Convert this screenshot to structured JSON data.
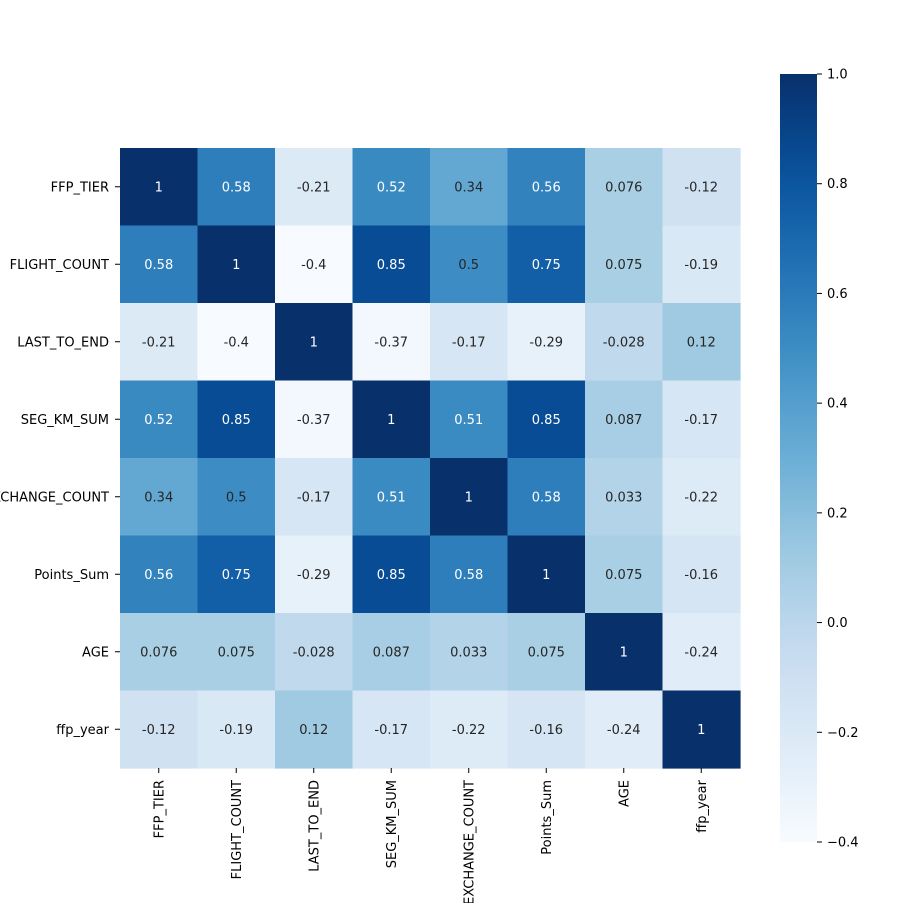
{
  "chart_data": {
    "type": "heatmap",
    "title": "",
    "xlabel": "",
    "ylabel": "",
    "cmap": "Blues",
    "vmin": -0.4,
    "vmax": 1.0,
    "annotated": true,
    "x_labels": [
      "FFP_TIER",
      "FLIGHT_COUNT",
      "LAST_TO_END",
      "SEG_KM_SUM",
      "EXCHANGE_COUNT",
      "Points_Sum",
      "AGE",
      "ffp_year"
    ],
    "y_labels": [
      "FFP_TIER",
      "FLIGHT_COUNT",
      "LAST_TO_END",
      "SEG_KM_SUM",
      "EXCHANGE_COUNT",
      "Points_Sum",
      "AGE",
      "ffp_year"
    ],
    "values": [
      [
        1,
        0.58,
        -0.21,
        0.52,
        0.34,
        0.56,
        0.076,
        -0.12
      ],
      [
        0.58,
        1,
        -0.4,
        0.85,
        0.5,
        0.75,
        0.075,
        -0.19
      ],
      [
        -0.21,
        -0.4,
        1,
        -0.37,
        -0.17,
        -0.29,
        -0.028,
        0.12
      ],
      [
        0.52,
        0.85,
        -0.37,
        1,
        0.51,
        0.85,
        0.087,
        -0.17
      ],
      [
        0.34,
        0.5,
        -0.17,
        0.51,
        1,
        0.58,
        0.033,
        -0.22
      ],
      [
        0.56,
        0.75,
        -0.29,
        0.85,
        0.58,
        1,
        0.075,
        -0.16
      ],
      [
        0.076,
        0.075,
        -0.028,
        0.087,
        0.033,
        0.075,
        1,
        -0.24
      ],
      [
        -0.12,
        -0.19,
        0.12,
        -0.17,
        -0.22,
        -0.16,
        -0.24,
        1
      ]
    ],
    "colorbar_ticks": [
      1.0,
      0.8,
      0.6,
      0.4,
      0.2,
      0.0,
      -0.2,
      -0.4
    ],
    "colorbar_tick_labels": [
      "1.0",
      "0.8",
      "0.6",
      "0.4",
      "0.2",
      "0.0",
      "−0.2",
      "−0.4"
    ]
  }
}
